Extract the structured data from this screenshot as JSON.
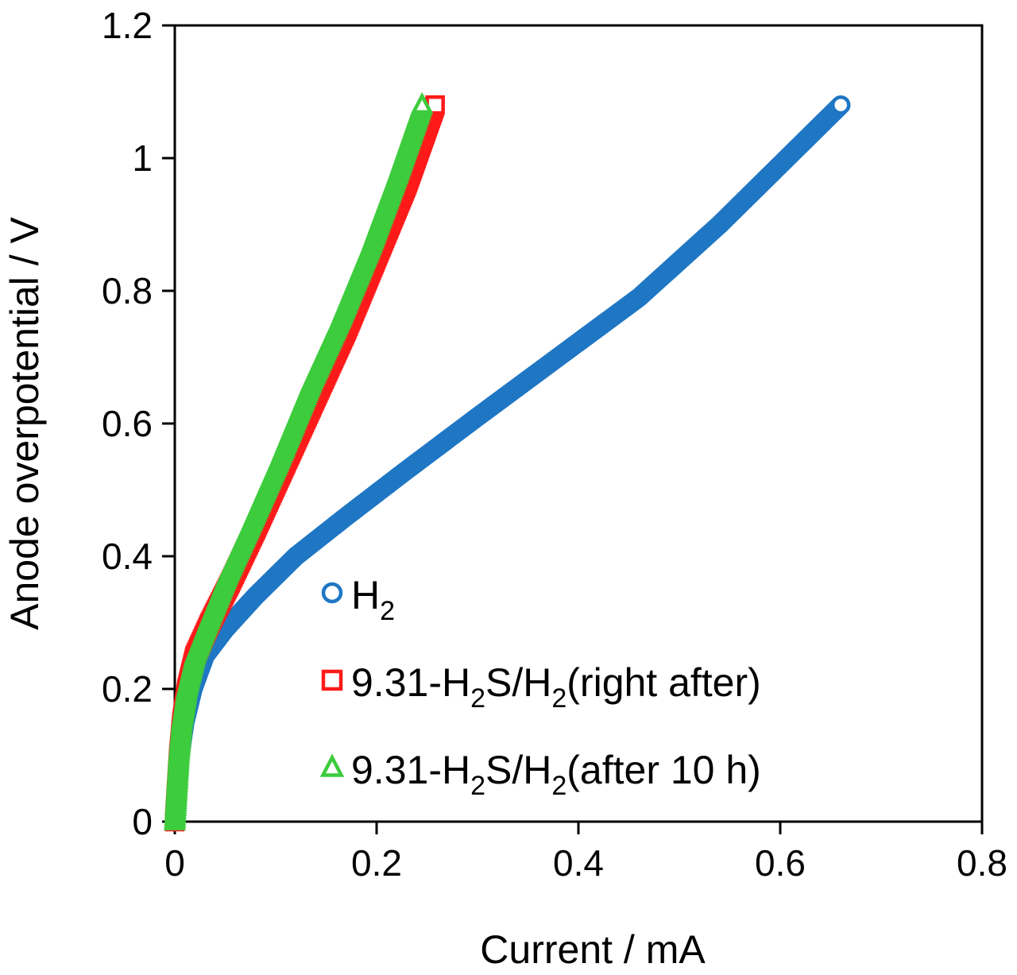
{
  "chart_data": {
    "type": "scatter",
    "title": "",
    "xlabel": "Current / mA",
    "ylabel": "Anode overpotential / V",
    "xlim": [
      0,
      0.8
    ],
    "ylim": [
      0,
      1.2
    ],
    "x_ticks": [
      0,
      0.2,
      0.4,
      0.6,
      0.8
    ],
    "x_tick_labels": [
      "0",
      "0.2",
      "0.4",
      "0.6",
      "0.8"
    ],
    "y_ticks": [
      0,
      0.2,
      0.4,
      0.6,
      0.8,
      1.0,
      1.2
    ],
    "y_tick_labels": [
      "0",
      "0.2",
      "0.4",
      "0.6",
      "0.8",
      "1",
      "1.2"
    ],
    "grid": false,
    "legend_position": "bottom-right",
    "colors": {
      "h2": "#1f77c4",
      "right_after": "#ff1a1a",
      "after_10h": "#3dcc3d"
    },
    "series": [
      {
        "key": "h2",
        "marker": "circle",
        "legend": {
          "pre": "H",
          "sub": "2",
          "post": ""
        },
        "points": [
          [
            0.0,
            0.0
          ],
          [
            0.002,
            0.05
          ],
          [
            0.005,
            0.1
          ],
          [
            0.01,
            0.15
          ],
          [
            0.018,
            0.2
          ],
          [
            0.03,
            0.25
          ],
          [
            0.05,
            0.29
          ],
          [
            0.08,
            0.34
          ],
          [
            0.12,
            0.4
          ],
          [
            0.17,
            0.46
          ],
          [
            0.23,
            0.53
          ],
          [
            0.3,
            0.61
          ],
          [
            0.38,
            0.7
          ],
          [
            0.46,
            0.79
          ],
          [
            0.54,
            0.9
          ],
          [
            0.6,
            0.99
          ],
          [
            0.66,
            1.08
          ]
        ]
      },
      {
        "key": "right_after",
        "marker": "square",
        "legend": {
          "pre": "9.31-H",
          "sub": "2",
          "mid": "S/H",
          "sub2": "2",
          "post": "(right after)"
        },
        "points": [
          [
            0.0,
            0.0
          ],
          [
            0.002,
            0.05
          ],
          [
            0.004,
            0.1
          ],
          [
            0.007,
            0.15
          ],
          [
            0.012,
            0.2
          ],
          [
            0.02,
            0.25
          ],
          [
            0.035,
            0.3
          ],
          [
            0.055,
            0.36
          ],
          [
            0.08,
            0.44
          ],
          [
            0.11,
            0.54
          ],
          [
            0.14,
            0.64
          ],
          [
            0.17,
            0.74
          ],
          [
            0.2,
            0.85
          ],
          [
            0.23,
            0.96
          ],
          [
            0.258,
            1.08
          ]
        ]
      },
      {
        "key": "after_10h",
        "marker": "triangle",
        "legend": {
          "pre": "9.31-H",
          "sub": "2",
          "mid": "S/H",
          "sub2": "2",
          "post": "(after 10 h)"
        },
        "points": [
          [
            0.0,
            0.0
          ],
          [
            0.002,
            0.05
          ],
          [
            0.004,
            0.1
          ],
          [
            0.007,
            0.15
          ],
          [
            0.012,
            0.2
          ],
          [
            0.02,
            0.25
          ],
          [
            0.033,
            0.3
          ],
          [
            0.052,
            0.37
          ],
          [
            0.076,
            0.45
          ],
          [
            0.105,
            0.55
          ],
          [
            0.135,
            0.66
          ],
          [
            0.165,
            0.76
          ],
          [
            0.195,
            0.87
          ],
          [
            0.222,
            0.98
          ],
          [
            0.245,
            1.08
          ]
        ]
      }
    ]
  }
}
